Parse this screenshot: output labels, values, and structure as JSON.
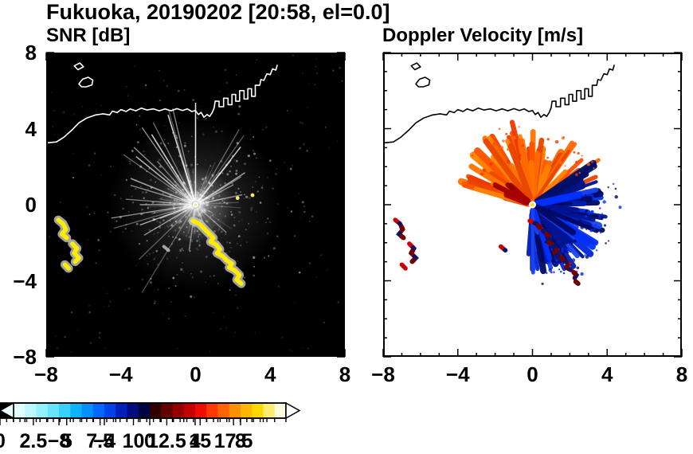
{
  "figure_title": "Fukuoka, 20190202 [20:58, el=0.0]",
  "chart_data": [
    {
      "type": "heatmap",
      "variant": "radar-ppi",
      "title": "SNR [dB]",
      "units": "dB",
      "xlim": [
        -8,
        8
      ],
      "ylim": [
        -8,
        8
      ],
      "x_ticks": [
        -8,
        -4,
        0,
        4,
        8
      ],
      "y_ticks": [
        8,
        4,
        0,
        -4,
        -8
      ],
      "x_tick_labels": [
        "−8",
        "−4",
        "0",
        "4",
        "8"
      ],
      "y_tick_labels": [
        "8",
        "4",
        "0",
        "−4",
        "−8"
      ],
      "minor_tick_step_km": 1,
      "background_color": "#000000",
      "coastline_color": "#ffffff",
      "radar_center_km": [
        0,
        0
      ],
      "description": "Radial SNR echoes (gray streaks, 2-10 dB) within ~4 km of radar at origin; saturated ground-clutter arcs (>17.5 dB, yellow) southeast of radar and near x=-7 km, plus background speckle noise",
      "colorbar": {
        "min": 0,
        "max": 20,
        "minor_tick_step": 0.5,
        "label_values": [
          0,
          2.5,
          5,
          7.5,
          10,
          12.5,
          15,
          17.5
        ],
        "labels": [
          "0",
          "2.5",
          "5",
          "7.5",
          "10",
          "12.5",
          "15",
          "17.5"
        ],
        "colors": [
          "#000000",
          "#0d0d0d",
          "#1a1a1a",
          "#262626",
          "#333333",
          "#404040",
          "#4d4d4d",
          "#595959",
          "#666666",
          "#737373",
          "#808080",
          "#8c8c8c",
          "#999999",
          "#a6a6a6",
          "#b3b3b3",
          "#bfbfbf",
          "#cccccc",
          "#d9d9d9",
          "#e6e6e6",
          "#f4f4f4"
        ],
        "over_arrow_color": "#ffe400"
      }
    },
    {
      "type": "heatmap",
      "variant": "radar-ppi",
      "title": "Doppler Velocity [m/s]",
      "units": "m/s",
      "xlim": [
        -8,
        8
      ],
      "ylim": [
        -8,
        8
      ],
      "x_ticks": [
        -8,
        -4,
        0,
        4,
        8
      ],
      "y_ticks": [
        8,
        4,
        0,
        -4,
        -8
      ],
      "x_tick_labels": [
        "−8",
        "−4",
        "0",
        "4",
        "8"
      ],
      "y_tick_labels": [],
      "minor_tick_step_km": 1,
      "background_color": "#ffffff",
      "coastline_color": "#000000",
      "radar_center_km": [
        0,
        0
      ],
      "description": "Positive Doppler velocities (+3 to +8 m/s, orange/red fan) north and northwest of radar; negative velocities (-2 to -8 m/s, blue lobe) east-southeast; mixed red/blue clutter arcs southeast and near x=-7 km",
      "colorbar": {
        "min": -12,
        "max": 12,
        "minor_tick_step": 1,
        "label_values": [
          -8,
          -4,
          0,
          4,
          8
        ],
        "labels": [
          "−8",
          "−4",
          "0",
          "4",
          "8"
        ],
        "colors": [
          "#e0fdff",
          "#bcf8ff",
          "#92f0ff",
          "#66e4ff",
          "#38d0ff",
          "#0ab4ff",
          "#0090ff",
          "#0068ff",
          "#0040e8",
          "#0020b8",
          "#000c80",
          "#000440",
          "#300000",
          "#640000",
          "#940000",
          "#c40000",
          "#ec0c00",
          "#ff3800",
          "#ff6400",
          "#ff9000",
          "#ffb800",
          "#ffd800",
          "#ffec70",
          "#fffbe0"
        ],
        "under_arrow_color": "#eaffff",
        "over_arrow_color": "#ffffff"
      }
    }
  ],
  "geometry": {
    "coastline_km": [
      [
        [
          -8,
          3.25
        ],
        [
          -7.45,
          3.3
        ],
        [
          -7.05,
          3.55
        ],
        [
          -6.65,
          3.9
        ],
        [
          -6.25,
          4.3
        ],
        [
          -5.85,
          4.55
        ],
        [
          -5.35,
          4.72
        ],
        [
          -4.95,
          4.78
        ],
        [
          -4.6,
          4.72
        ],
        [
          -4.45,
          4.92
        ],
        [
          -4.2,
          4.84
        ],
        [
          -4.0,
          5.0
        ],
        [
          -3.72,
          4.9
        ],
        [
          -3.5,
          5.04
        ],
        [
          -3.2,
          4.94
        ],
        [
          -2.9,
          5.08
        ],
        [
          -2.6,
          4.98
        ],
        [
          -2.25,
          5.04
        ],
        [
          -1.95,
          4.94
        ],
        [
          -1.62,
          5.04
        ],
        [
          -1.32,
          4.94
        ],
        [
          -1.0,
          5.05
        ],
        [
          -0.7,
          4.95
        ],
        [
          -0.45,
          5.04
        ],
        [
          -0.2,
          4.9
        ],
        [
          0.0,
          4.95
        ],
        [
          0.15,
          4.74
        ],
        [
          0.3,
          4.85
        ],
        [
          0.45,
          4.6
        ],
        [
          0.62,
          4.74
        ],
        [
          0.76,
          4.64
        ],
        [
          0.9,
          4.86
        ],
        [
          1.0,
          5.1
        ],
        [
          1.05,
          5.44
        ],
        [
          1.26,
          5.44
        ],
        [
          1.26,
          5.15
        ],
        [
          1.5,
          5.15
        ],
        [
          1.5,
          5.6
        ],
        [
          1.74,
          5.6
        ],
        [
          1.74,
          5.26
        ],
        [
          1.95,
          5.26
        ],
        [
          1.95,
          5.8
        ],
        [
          2.15,
          5.8
        ],
        [
          2.15,
          5.44
        ],
        [
          2.36,
          5.44
        ],
        [
          2.36,
          6.0
        ],
        [
          2.6,
          6.0
        ],
        [
          2.6,
          5.56
        ],
        [
          2.8,
          5.56
        ],
        [
          2.8,
          6.1
        ],
        [
          3.0,
          6.1
        ],
        [
          3.0,
          5.7
        ],
        [
          3.2,
          5.7
        ],
        [
          3.2,
          6.28
        ],
        [
          3.44,
          6.28
        ],
        [
          3.5,
          6.58
        ],
        [
          3.66,
          6.54
        ],
        [
          3.82,
          6.88
        ],
        [
          4.0,
          6.84
        ],
        [
          4.12,
          7.14
        ],
        [
          4.3,
          7.08
        ],
        [
          4.38,
          7.36
        ]
      ]
    ],
    "islands_km": [
      [
        [
          -6.25,
          6.35
        ],
        [
          -6.05,
          6.6
        ],
        [
          -5.75,
          6.7
        ],
        [
          -5.5,
          6.55
        ],
        [
          -5.55,
          6.3
        ],
        [
          -5.85,
          6.2
        ],
        [
          -6.1,
          6.2
        ]
      ],
      [
        [
          -6.5,
          7.3
        ],
        [
          -6.2,
          7.45
        ],
        [
          -6.0,
          7.25
        ],
        [
          -6.3,
          7.1
        ]
      ]
    ],
    "clutter_arcs_km": [
      [
        [
          -0.15,
          -0.85
        ],
        [
          0.2,
          -1.0
        ],
        [
          0.45,
          -1.25
        ],
        [
          0.7,
          -1.5
        ],
        [
          0.95,
          -1.75
        ],
        [
          0.8,
          -1.95
        ],
        [
          1.1,
          -2.1
        ],
        [
          1.3,
          -2.35
        ],
        [
          1.15,
          -2.55
        ],
        [
          1.45,
          -2.7
        ],
        [
          1.7,
          -2.95
        ],
        [
          1.95,
          -3.1
        ],
        [
          1.8,
          -3.3
        ],
        [
          2.1,
          -3.45
        ],
        [
          2.35,
          -3.7
        ],
        [
          2.2,
          -3.95
        ],
        [
          2.45,
          -4.15
        ]
      ],
      [
        [
          -7.35,
          -0.8
        ],
        [
          -7.1,
          -1.0
        ],
        [
          -6.95,
          -1.3
        ],
        [
          -7.15,
          -1.55
        ],
        [
          -6.9,
          -1.75
        ]
      ],
      [
        [
          -6.6,
          -2.05
        ],
        [
          -6.35,
          -2.3
        ],
        [
          -6.5,
          -2.55
        ],
        [
          -6.25,
          -2.8
        ],
        [
          -6.45,
          -3.0
        ]
      ],
      [
        [
          -7.0,
          -3.15
        ],
        [
          -6.8,
          -3.35
        ]
      ],
      [
        [
          -1.7,
          -2.2
        ],
        [
          -1.45,
          -2.4
        ]
      ]
    ]
  },
  "echoes": {
    "snr": {
      "speckle_seed": 11,
      "speckle_core_count": 520,
      "speckle_wide_count": 170,
      "faint_ray_count": 55,
      "bright_ray_count": 22,
      "bright_rays": [
        {
          "angle": 90,
          "len": 128,
          "opacity": 0.9
        },
        {
          "angle": 107,
          "len": 118,
          "opacity": 0.85
        },
        {
          "angle": 122,
          "len": 104,
          "opacity": 0.8
        },
        {
          "angle": 141,
          "len": 96,
          "opacity": 0.7
        },
        {
          "angle": 158,
          "len": 88,
          "opacity": 0.6
        },
        {
          "angle": 52,
          "len": 92,
          "opacity": 0.75
        },
        {
          "angle": 33,
          "len": 74,
          "opacity": 0.6
        },
        {
          "angle": 12,
          "len": 60,
          "opacity": 0.5
        },
        {
          "angle": 180,
          "len": 70,
          "opacity": 0.55
        },
        {
          "angle": 201,
          "len": 48,
          "opacity": 0.5
        },
        {
          "angle": 262,
          "len": 58,
          "opacity": 0.45
        },
        {
          "angle": 318,
          "len": 52,
          "opacity": 0.4
        }
      ],
      "hot_spots_km": [
        [
          2.25,
          0.35
        ],
        [
          3.05,
          0.5
        ]
      ],
      "clutter_color": "#ffec00",
      "clutter_halo_color": "#c8c8c8"
    },
    "velocity": {
      "seed": 7,
      "positive_fan": {
        "angle_range": [
          18,
          168
        ],
        "count": 88,
        "len_range": [
          24,
          95
        ],
        "colors": [
          "#ff6a00",
          "#ff5200",
          "#f03800",
          "#ff8400",
          "#e84600",
          "#ff7600"
        ]
      },
      "positive_accents": {
        "angle_range": [
          135,
          166
        ],
        "count": 9,
        "len_range": [
          18,
          48
        ],
        "colors": [
          "#8e0000",
          "#a80000"
        ]
      },
      "navy_spikes": {
        "angle_range": [
          6,
          36
        ],
        "count": 10,
        "len_range": [
          40,
          88
        ],
        "colors": [
          "#001488",
          "#000f6a"
        ]
      },
      "negative_fan": {
        "angle_range": [
          -95,
          14
        ],
        "count": 100,
        "len_range": [
          20,
          86
        ],
        "colors": [
          "#0026dc",
          "#001eb4",
          "#001390",
          "#000a62",
          "#1a44f2",
          "#0030ff"
        ]
      },
      "negative_speckle": {
        "angle_range": [
          -88,
          20
        ],
        "count": 60,
        "radius_range": [
          60,
          112
        ],
        "colors": [
          "#0026dc",
          "#000a62",
          "#0030ff"
        ]
      },
      "positive_speckle": {
        "angle_range": [
          24,
          150
        ],
        "count": 36,
        "radius_range": [
          62,
          104
        ],
        "colors": [
          "#ff6a00",
          "#f03800"
        ]
      },
      "clutter_colors": [
        "#c80000",
        "#001670",
        "#6e0000"
      ]
    }
  }
}
